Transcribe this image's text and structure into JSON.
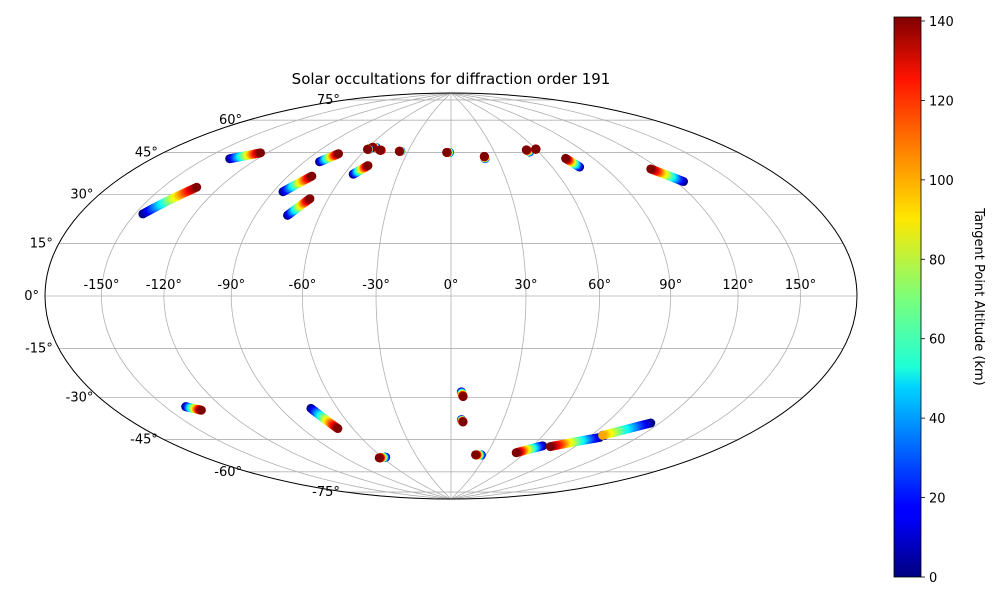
{
  "chart_data": {
    "type": "scatter",
    "projection": "hammer",
    "title": "Solar occultations for diffraction order 191",
    "lon_ticks": [
      "-150°",
      "-120°",
      "-90°",
      "-60°",
      "-30°",
      "0°",
      "30°",
      "60°",
      "90°",
      "120°",
      "150°"
    ],
    "lon_tick_values": [
      -150,
      -120,
      -90,
      -60,
      -30,
      0,
      30,
      60,
      90,
      120,
      150
    ],
    "lat_ticks": [
      "75°",
      "60°",
      "45°",
      "30°",
      "15°",
      "0°",
      "-15°",
      "-30°",
      "-45°",
      "-60°",
      "-75°"
    ],
    "lat_tick_values": [
      75,
      60,
      45,
      30,
      15,
      0,
      -15,
      -30,
      -45,
      -60,
      -75
    ],
    "grid": true,
    "colorbar": {
      "label": "Tangent Point Altitude (km)",
      "min": 0,
      "max": 141,
      "ticks": [
        "0",
        "20",
        "40",
        "60",
        "80",
        "100",
        "120",
        "140"
      ],
      "tick_values": [
        0,
        20,
        40,
        60,
        80,
        100,
        120,
        140
      ],
      "colormap": "jet"
    },
    "tracks": [
      {
        "lon_start": -146,
        "lat_start": 27,
        "lon_end": -132,
        "lat_end": 38,
        "alt_start": 0,
        "alt_end": 141
      },
      {
        "lon_start": -136,
        "lat_start": 49,
        "lon_end": -124,
        "lat_end": 53,
        "alt_start": 0,
        "alt_end": 141
      },
      {
        "lon_start": -85,
        "lat_start": 40,
        "lon_end": -77,
        "lat_end": 47,
        "alt_start": 0,
        "alt_end": 141
      },
      {
        "lon_start": -81,
        "lat_start": 53,
        "lon_end": -75,
        "lat_end": 57,
        "alt_start": 0,
        "alt_end": 141
      },
      {
        "lon_start": -75,
        "lat_start": 31,
        "lon_end": -69,
        "lat_end": 38,
        "alt_start": 0,
        "alt_end": 141
      },
      {
        "lon_start": -55,
        "lat_start": 49,
        "lon_end": -50,
        "lat_end": 53,
        "alt_start": 0,
        "alt_end": 141
      },
      {
        "lon_start": -54,
        "lat_start": 61,
        "lon_end": -57,
        "lat_end": 61,
        "alt_start": 0,
        "alt_end": 141
      },
      {
        "lon_start": -58,
        "lat_start": 60,
        "lon_end": -59,
        "lat_end": 60,
        "alt_start": 0,
        "alt_end": 141
      },
      {
        "lon_start": -49,
        "lat_start": 60,
        "lon_end": -50,
        "lat_end": 60,
        "alt_start": 120,
        "alt_end": 141
      },
      {
        "lon_start": -35,
        "lat_start": 60,
        "lon_end": -36,
        "lat_end": 60,
        "alt_start": 10,
        "alt_end": 141
      },
      {
        "lon_start": -1,
        "lat_start": 60,
        "lon_end": -3,
        "lat_end": 60,
        "alt_start": 10,
        "alt_end": 141
      },
      {
        "lon_start": 22,
        "lat_start": 57,
        "lon_end": 22,
        "lat_end": 58,
        "alt_start": 10,
        "alt_end": 141
      },
      {
        "lon_start": 54,
        "lat_start": 59,
        "lon_end": 53,
        "lat_end": 60,
        "alt_start": 10,
        "alt_end": 141
      },
      {
        "lon_start": 60,
        "lat_start": 60,
        "lon_end": 60,
        "lat_end": 60,
        "alt_start": 130,
        "alt_end": 141
      },
      {
        "lon_start": 76,
        "lat_start": 51,
        "lon_end": 73,
        "lat_end": 55,
        "alt_start": 0,
        "alt_end": 141
      },
      {
        "lon_start": 124,
        "lat_start": 41,
        "lon_end": 115,
        "lat_end": 47,
        "alt_start": 0,
        "alt_end": 141
      },
      {
        "lon_start": -139,
        "lat_start": -38,
        "lon_end": -133,
        "lat_end": -40,
        "alt_start": 0,
        "alt_end": 141
      },
      {
        "lon_start": -74,
        "lat_start": -44,
        "lon_end": -69,
        "lat_end": -53,
        "alt_start": 0,
        "alt_end": 141
      },
      {
        "lon_start": -57,
        "lat_start": -67,
        "lon_end": -63,
        "lat_end": -67,
        "alt_start": 0,
        "alt_end": 141
      },
      {
        "lon_start": 5,
        "lat_start": -39,
        "lon_end": 6,
        "lat_end": -41,
        "alt_start": 0,
        "alt_end": 141
      },
      {
        "lon_start": 6,
        "lat_start": -51,
        "lon_end": 7,
        "lat_end": -52,
        "alt_start": 0,
        "alt_end": 141
      },
      {
        "lon_start": 26,
        "lat_start": -67,
        "lon_end": 21,
        "lat_end": -67,
        "alt_start": 0,
        "alt_end": 141
      },
      {
        "lon_start": 67,
        "lat_start": -61,
        "lon_end": 53,
        "lat_end": -65,
        "alt_start": 0,
        "alt_end": 141
      },
      {
        "lon_start": 97,
        "lat_start": -55,
        "lon_end": 73,
        "lat_end": -61,
        "alt_start": 0,
        "alt_end": 141
      },
      {
        "lon_start": 98,
        "lat_start": -54,
        "lon_end": 97,
        "lat_end": -54,
        "alt_start": 0,
        "alt_end": 20
      },
      {
        "lon_start": 115,
        "lat_start": -47,
        "lon_end": 97,
        "lat_end": -54,
        "alt_start": 0,
        "alt_end": 100
      }
    ]
  }
}
